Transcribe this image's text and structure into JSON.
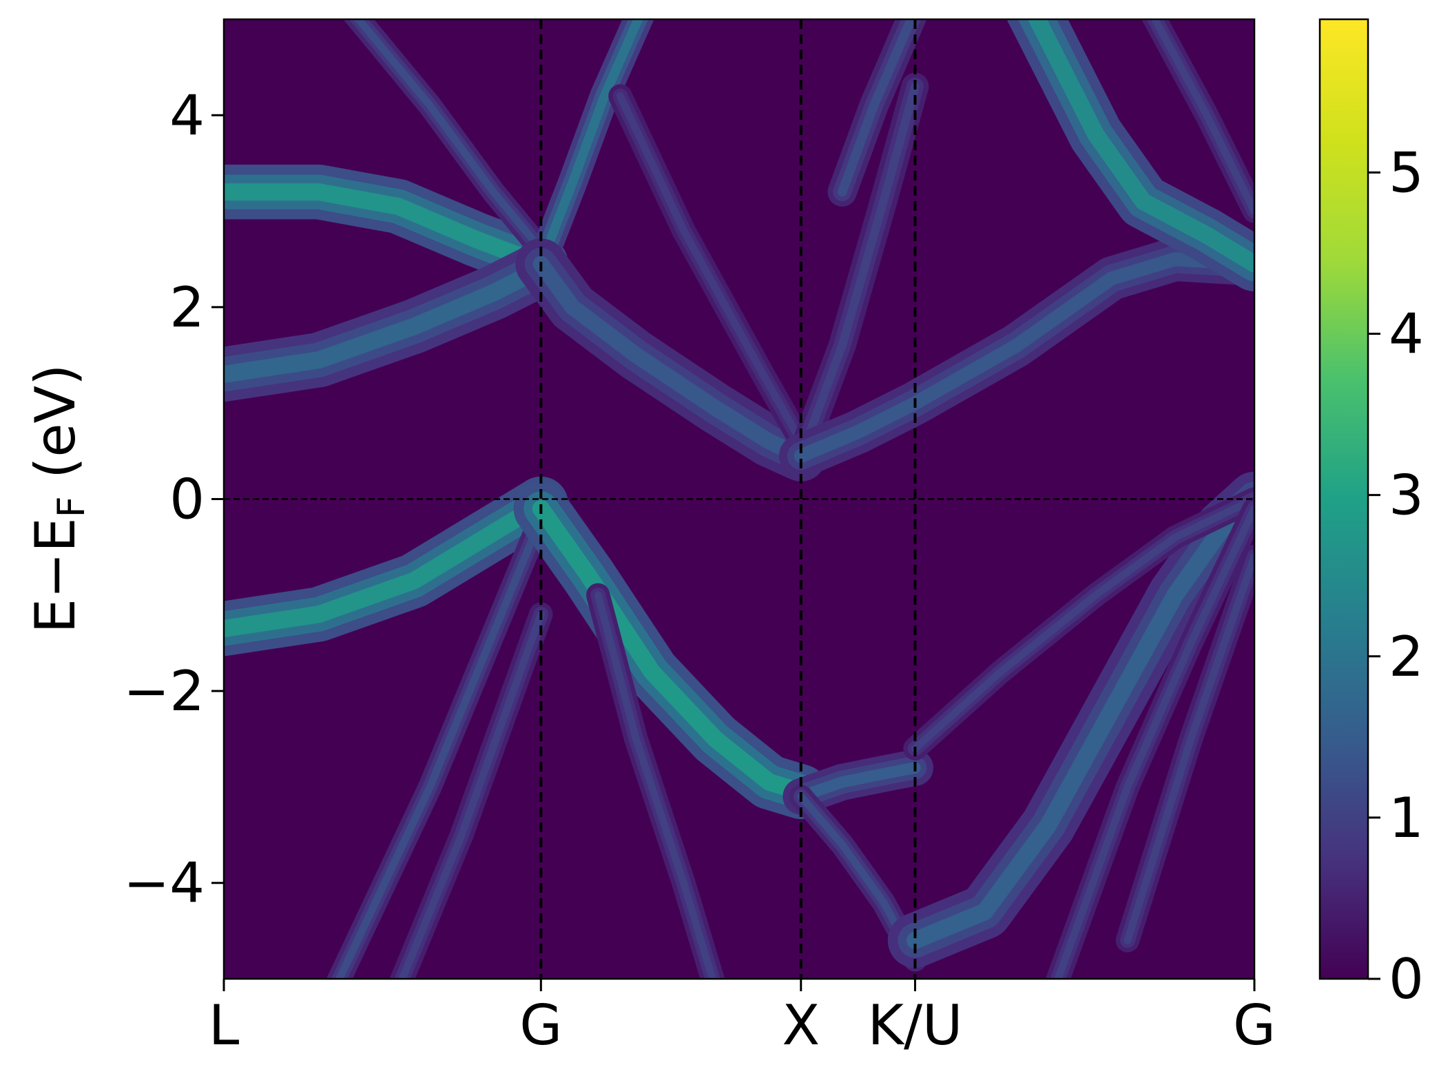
{
  "chart_data": {
    "type": "heatmap",
    "title": "",
    "xlabel": "",
    "ylabel": "E−E",
    "ylabel_subscript": "F",
    "ylabel_unit": " (eV)",
    "ylim": [
      -5,
      5
    ],
    "yticks": [
      {
        "value": -4,
        "label": "−4"
      },
      {
        "value": -2,
        "label": "−2"
      },
      {
        "value": 0,
        "label": "0"
      },
      {
        "value": 2,
        "label": "2"
      },
      {
        "value": 4,
        "label": "4"
      }
    ],
    "xlim": [
      0,
      3.25
    ],
    "kpoints": [
      {
        "label": "L",
        "x": 0
      },
      {
        "label": "G",
        "x": 1.0
      },
      {
        "label": "X",
        "x": 1.82
      },
      {
        "label": "K/U",
        "x": 2.18
      },
      {
        "label": "G",
        "x": 3.25
      }
    ],
    "fermi_level": 0,
    "grid": false,
    "colormap": "viridis",
    "colorbar": {
      "range": [
        0,
        5.95
      ],
      "ticks": [
        {
          "value": 0,
          "label": "0"
        },
        {
          "value": 1,
          "label": "1"
        },
        {
          "value": 2,
          "label": "2"
        },
        {
          "value": 3,
          "label": "3"
        },
        {
          "value": 4,
          "label": "4"
        },
        {
          "value": 5,
          "label": "5"
        }
      ]
    },
    "bands": [
      {
        "width": 0.3,
        "peak": 2.7,
        "points": [
          [
            0,
            3.2
          ],
          [
            0.3,
            3.2
          ],
          [
            0.55,
            3.05
          ],
          [
            0.8,
            2.7
          ],
          [
            1.0,
            2.45
          ]
        ]
      },
      {
        "width": 0.3,
        "peak": 1.7,
        "points": [
          [
            0,
            1.3
          ],
          [
            0.3,
            1.45
          ],
          [
            0.6,
            1.8
          ],
          [
            0.85,
            2.15
          ],
          [
            1.0,
            2.4
          ]
        ]
      },
      {
        "width": 0.3,
        "peak": 2.7,
        "points": [
          [
            0,
            -1.35
          ],
          [
            0.3,
            -1.2
          ],
          [
            0.6,
            -0.85
          ],
          [
            0.85,
            -0.35
          ],
          [
            1.0,
            -0.05
          ]
        ]
      },
      {
        "width": 0.13,
        "peak": 1.2,
        "points": [
          [
            0.4,
            5.1
          ],
          [
            0.65,
            4.1
          ],
          [
            0.85,
            3.2
          ],
          [
            1.0,
            2.6
          ]
        ]
      },
      {
        "width": 0.13,
        "peak": 1.2,
        "points": [
          [
            0.35,
            -5.1
          ],
          [
            0.65,
            -3.0
          ],
          [
            1.0,
            -0.2
          ]
        ]
      },
      {
        "width": 0.13,
        "peak": 1.0,
        "points": [
          [
            0.55,
            -5.1
          ],
          [
            0.75,
            -3.5
          ],
          [
            1.0,
            -1.2
          ]
        ]
      },
      {
        "width": 0.16,
        "peak": 2.0,
        "points": [
          [
            1.0,
            2.45
          ],
          [
            1.1,
            3.3
          ],
          [
            1.2,
            4.2
          ],
          [
            1.32,
            5.1
          ]
        ]
      },
      {
        "width": 0.28,
        "peak": 1.4,
        "points": [
          [
            1.0,
            2.45
          ],
          [
            1.1,
            2.0
          ],
          [
            1.3,
            1.5
          ],
          [
            1.55,
            0.95
          ],
          [
            1.72,
            0.6
          ],
          [
            1.82,
            0.45
          ]
        ]
      },
      {
        "width": 0.13,
        "peak": 0.9,
        "points": [
          [
            1.25,
            4.2
          ],
          [
            1.45,
            2.8
          ],
          [
            1.7,
            1.3
          ],
          [
            1.82,
            0.6
          ]
        ]
      },
      {
        "width": 0.3,
        "peak": 2.8,
        "points": [
          [
            1.0,
            -0.1
          ],
          [
            1.15,
            -0.8
          ],
          [
            1.35,
            -1.8
          ],
          [
            1.55,
            -2.5
          ],
          [
            1.72,
            -2.95
          ],
          [
            1.82,
            -3.05
          ]
        ]
      },
      {
        "width": 0.13,
        "peak": 1.0,
        "points": [
          [
            1.18,
            -1.0
          ],
          [
            1.3,
            -2.5
          ],
          [
            1.45,
            -4.0
          ],
          [
            1.55,
            -5.1
          ]
        ]
      },
      {
        "width": 0.2,
        "peak": 1.5,
        "points": [
          [
            1.82,
            -3.1
          ],
          [
            1.95,
            -2.95
          ],
          [
            2.1,
            -2.85
          ],
          [
            2.18,
            -2.8
          ]
        ]
      },
      {
        "width": 0.13,
        "peak": 1.2,
        "points": [
          [
            1.82,
            -3.1
          ],
          [
            1.95,
            -3.6
          ],
          [
            2.08,
            -4.2
          ],
          [
            2.18,
            -4.8
          ]
        ]
      },
      {
        "width": 0.15,
        "peak": 1.0,
        "points": [
          [
            1.82,
            0.45
          ],
          [
            1.95,
            1.6
          ],
          [
            2.08,
            3.1
          ],
          [
            2.18,
            4.3
          ]
        ]
      },
      {
        "width": 0.24,
        "peak": 1.4,
        "points": [
          [
            1.82,
            0.45
          ],
          [
            2.0,
            0.7
          ],
          [
            2.18,
            1.0
          ],
          [
            2.5,
            1.6
          ],
          [
            2.8,
            2.3
          ],
          [
            3.0,
            2.5
          ],
          [
            3.25,
            2.45
          ]
        ]
      },
      {
        "width": 0.3,
        "peak": 2.5,
        "points": [
          [
            2.55,
            5.1
          ],
          [
            2.75,
            3.8
          ],
          [
            2.9,
            3.1
          ],
          [
            3.1,
            2.75
          ],
          [
            3.25,
            2.45
          ]
        ]
      },
      {
        "width": 0.13,
        "peak": 1.0,
        "points": [
          [
            2.92,
            5.1
          ],
          [
            3.1,
            4.0
          ],
          [
            3.25,
            3.0
          ]
        ]
      },
      {
        "width": 0.3,
        "peak": 1.6,
        "points": [
          [
            2.18,
            -4.6
          ],
          [
            2.4,
            -4.3
          ],
          [
            2.6,
            -3.4
          ],
          [
            2.8,
            -2.2
          ],
          [
            3.0,
            -1.0
          ],
          [
            3.15,
            -0.3
          ],
          [
            3.25,
            0.0
          ]
        ]
      },
      {
        "width": 0.13,
        "peak": 1.0,
        "points": [
          [
            2.18,
            -2.6
          ],
          [
            2.45,
            -1.8
          ],
          [
            2.75,
            -1.0
          ],
          [
            3.0,
            -0.4
          ],
          [
            3.25,
            0.0
          ]
        ]
      },
      {
        "width": 0.13,
        "peak": 1.0,
        "points": [
          [
            2.62,
            -5.1
          ],
          [
            2.85,
            -3.0
          ],
          [
            3.05,
            -1.5
          ],
          [
            3.25,
            -0.1
          ]
        ]
      },
      {
        "width": 0.13,
        "peak": 1.0,
        "points": [
          [
            2.85,
            -4.6
          ],
          [
            3.05,
            -2.5
          ],
          [
            3.25,
            -0.6
          ]
        ]
      },
      {
        "width": 0.16,
        "peak": 1.2,
        "points": [
          [
            2.18,
            5.1
          ],
          [
            2.05,
            4.1
          ],
          [
            1.95,
            3.2
          ]
        ]
      }
    ]
  }
}
